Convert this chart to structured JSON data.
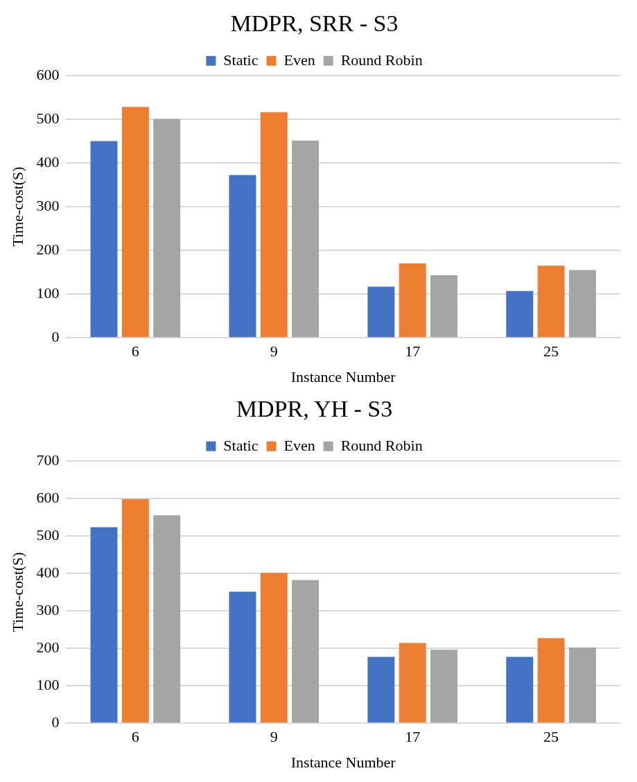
{
  "chart_data": [
    {
      "type": "bar",
      "title": "MDPR, SRR - S3",
      "xlabel": "Instance Number",
      "ylabel": "Time-cost(S)",
      "categories": [
        "6",
        "9",
        "17",
        "25"
      ],
      "series": [
        {
          "name": "Static",
          "color": "#4472c4",
          "values": [
            450,
            372,
            117,
            107
          ]
        },
        {
          "name": "Even",
          "color": "#ed7d31",
          "values": [
            528,
            516,
            170,
            165
          ]
        },
        {
          "name": "Round Robin",
          "color": "#a5a5a5",
          "values": [
            500,
            451,
            143,
            155
          ]
        }
      ],
      "ylim": [
        0,
        600
      ],
      "yticks": [
        0,
        100,
        200,
        300,
        400,
        500,
        600
      ],
      "grid": "y",
      "legend": "top"
    },
    {
      "type": "bar",
      "title": "MDPR, YH - S3",
      "xlabel": "Instance Number",
      "ylabel": "Time-cost(S)",
      "categories": [
        "6",
        "9",
        "17",
        "25"
      ],
      "series": [
        {
          "name": "Static",
          "color": "#4472c4",
          "values": [
            523,
            351,
            177,
            177
          ]
        },
        {
          "name": "Even",
          "color": "#ed7d31",
          "values": [
            598,
            401,
            214,
            227
          ]
        },
        {
          "name": "Round Robin",
          "color": "#a5a5a5",
          "values": [
            555,
            382,
            196,
            202
          ]
        }
      ],
      "ylim": [
        0,
        700
      ],
      "yticks": [
        0,
        100,
        200,
        300,
        400,
        500,
        600,
        700
      ],
      "grid": "y",
      "legend": "top"
    }
  ]
}
